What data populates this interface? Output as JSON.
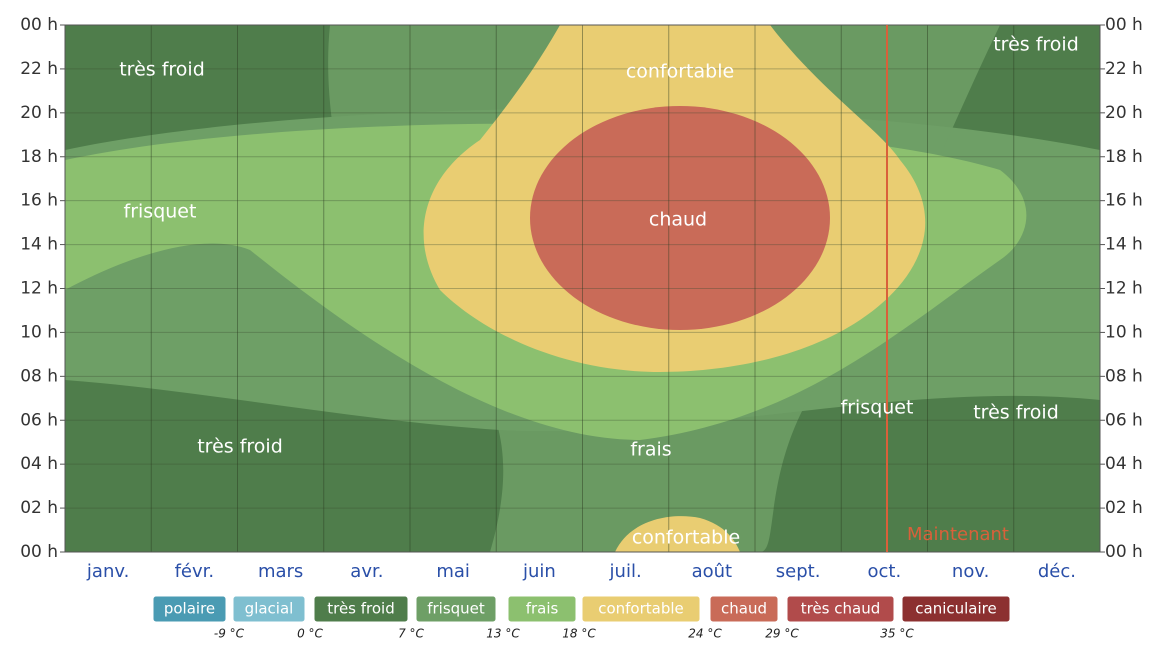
{
  "chart_data": {
    "type": "contour",
    "categories": [
      "janv.",
      "févr.",
      "mars",
      "avr.",
      "mai",
      "juin",
      "juil.",
      "août",
      "sept.",
      "oct.",
      "nov.",
      "déc."
    ],
    "ylim": [
      0,
      24
    ],
    "yticks": [
      {
        "value": 0,
        "label": "00 h"
      },
      {
        "value": 2,
        "label": "02 h"
      },
      {
        "value": 4,
        "label": "04 h"
      },
      {
        "value": 6,
        "label": "06 h"
      },
      {
        "value": 8,
        "label": "08 h"
      },
      {
        "value": 10,
        "label": "10 h"
      },
      {
        "value": 12,
        "label": "12 h"
      },
      {
        "value": 14,
        "label": "14 h"
      },
      {
        "value": 16,
        "label": "16 h"
      },
      {
        "value": 18,
        "label": "18 h"
      },
      {
        "value": 20,
        "label": "20 h"
      },
      {
        "value": 22,
        "label": "22 h"
      },
      {
        "value": 24,
        "label": "00 h"
      }
    ],
    "grid": true,
    "annotations": [
      "très froid",
      "confortable",
      "très froid",
      "frisquet",
      "chaud",
      "frisquet",
      "très froid",
      "très froid",
      "frais",
      "confortable",
      "Maintenant"
    ],
    "legend": [
      {
        "name": "polaire",
        "color": "#4a9bb3"
      },
      {
        "name": "glacial",
        "color": "#7fbfd0"
      },
      {
        "name": "très froid",
        "color": "#4f7d4b"
      },
      {
        "name": "frisquet",
        "color": "#6e9f66"
      },
      {
        "name": "frais",
        "color": "#8cc06f"
      },
      {
        "name": "confortable",
        "color": "#e9cd72"
      },
      {
        "name": "chaud",
        "color": "#c96b58"
      },
      {
        "name": "très chaud",
        "color": "#b14b4b"
      },
      {
        "name": "caniculaire",
        "color": "#8c3030"
      }
    ],
    "thresholds": [
      "-9 °C",
      "0 °C",
      "7 °C",
      "13 °C",
      "18 °C",
      "24 °C",
      "29 °C",
      "35 °C"
    ]
  }
}
